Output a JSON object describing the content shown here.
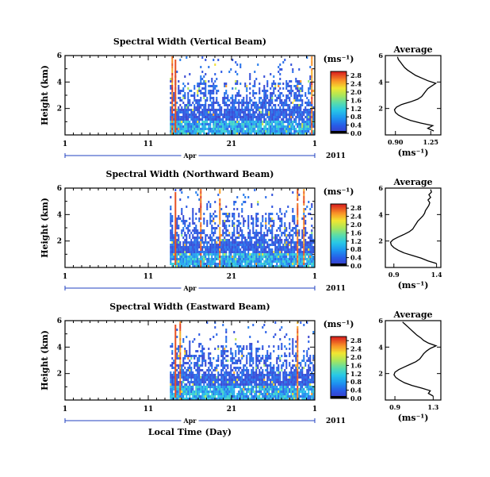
{
  "chart_data": [
    {
      "type": "heatmap",
      "title": "Spectral Width (Vertical Beam)",
      "ylabel": "Height (km)",
      "xlabel": "",
      "x_ticks": [
        "1",
        "11",
        "21",
        "1"
      ],
      "month_label": "Apr",
      "year_label": "2011",
      "y_ticks": [
        "2",
        "4",
        "6"
      ],
      "ylim": [
        0,
        6
      ],
      "colorbar": {
        "unit": "(ms⁻¹)",
        "ticks": [
          "0.0",
          "0.4",
          "0.8",
          "1.2",
          "1.6",
          "2.0",
          "2.4",
          "2.8"
        ],
        "range": [
          0.0,
          3.0
        ]
      },
      "data_start_fraction": 0.42,
      "profile": {
        "title": "Average",
        "xlabel": "(ms⁻¹)",
        "x_ticks": [
          "0.90",
          "1.25"
        ],
        "xlim": [
          0.8,
          1.35
        ],
        "y_ticks": [
          "2",
          "4",
          "6"
        ],
        "heights": [
          0.3,
          0.5,
          0.7,
          0.9,
          1.1,
          1.3,
          1.5,
          1.7,
          1.9,
          2.1,
          2.3,
          2.5,
          2.7,
          2.9,
          3.1,
          3.3,
          3.5,
          3.7,
          3.9,
          4.1,
          4.3,
          4.5,
          4.7,
          4.9,
          5.1,
          5.3,
          5.5,
          5.7,
          5.9
        ],
        "values": [
          1.28,
          1.22,
          1.27,
          1.15,
          1.05,
          0.98,
          0.93,
          0.9,
          0.89,
          0.91,
          0.96,
          1.05,
          1.12,
          1.16,
          1.18,
          1.2,
          1.22,
          1.26,
          1.3,
          1.22,
          1.16,
          1.1,
          1.06,
          1.02,
          0.99,
          0.97,
          0.95,
          0.93,
          0.92
        ]
      }
    },
    {
      "type": "heatmap",
      "title": "Spectral Width (Northward Beam)",
      "ylabel": "Height (km)",
      "xlabel": "",
      "x_ticks": [
        "1",
        "11",
        "21",
        "1"
      ],
      "month_label": "Apr",
      "year_label": "2011",
      "y_ticks": [
        "2",
        "4",
        "6"
      ],
      "ylim": [
        0,
        6
      ],
      "colorbar": {
        "unit": "(ms⁻¹)",
        "ticks": [
          "0.0",
          "0.4",
          "0.8",
          "1.2",
          "1.6",
          "2.0",
          "2.4",
          "2.8"
        ],
        "range": [
          0.0,
          3.0
        ]
      },
      "data_start_fraction": 0.42,
      "profile": {
        "title": "Average",
        "xlabel": "(ms⁻¹)",
        "x_ticks": [
          "0.9",
          "1.4"
        ],
        "xlim": [
          0.8,
          1.45
        ],
        "y_ticks": [
          "2",
          "4",
          "6"
        ],
        "heights": [
          0.3,
          0.5,
          0.7,
          0.9,
          1.1,
          1.3,
          1.5,
          1.7,
          1.9,
          2.1,
          2.3,
          2.5,
          2.7,
          2.9,
          3.1,
          3.3,
          3.5,
          3.7,
          3.9,
          4.1,
          4.3,
          4.5,
          4.7,
          4.9,
          5.1,
          5.3,
          5.5,
          5.7,
          5.9
        ],
        "values": [
          1.4,
          1.3,
          1.22,
          1.12,
          1.02,
          0.95,
          0.9,
          0.87,
          0.86,
          0.89,
          0.95,
          1.02,
          1.08,
          1.12,
          1.14,
          1.16,
          1.18,
          1.21,
          1.24,
          1.26,
          1.27,
          1.29,
          1.31,
          1.32,
          1.3,
          1.33,
          1.31,
          1.34,
          1.33
        ]
      }
    },
    {
      "type": "heatmap",
      "title": "Spectral Width (Eastward Beam)",
      "ylabel": "Height (km)",
      "xlabel": "Local Time (Day)",
      "x_ticks": [
        "1",
        "11",
        "21",
        "1"
      ],
      "month_label": "Apr",
      "year_label": "2011",
      "y_ticks": [
        "2",
        "4",
        "6"
      ],
      "ylim": [
        0,
        6
      ],
      "colorbar": {
        "unit": "(ms⁻¹)",
        "ticks": [
          "0.0",
          "0.4",
          "0.8",
          "1.2",
          "1.6",
          "2.0",
          "2.4",
          "2.8"
        ],
        "range": [
          0.0,
          3.0
        ]
      },
      "data_start_fraction": 0.42,
      "profile": {
        "title": "Average",
        "xlabel": "(ms⁻¹)",
        "x_ticks": [
          "0.9",
          "1.3"
        ],
        "xlim": [
          0.8,
          1.38
        ],
        "y_ticks": [
          "2",
          "4",
          "6"
        ],
        "heights": [
          0.3,
          0.5,
          0.7,
          0.9,
          1.1,
          1.3,
          1.5,
          1.7,
          1.9,
          2.1,
          2.3,
          2.5,
          2.7,
          2.9,
          3.1,
          3.3,
          3.5,
          3.7,
          3.9,
          4.1,
          4.3,
          4.5,
          4.7,
          4.9,
          5.1,
          5.3,
          5.5,
          5.7,
          5.9
        ],
        "values": [
          1.3,
          1.25,
          1.27,
          1.18,
          1.08,
          1.0,
          0.95,
          0.91,
          0.89,
          0.9,
          0.94,
          1.0,
          1.06,
          1.12,
          1.16,
          1.18,
          1.2,
          1.23,
          1.27,
          1.33,
          1.25,
          1.2,
          1.17,
          1.13,
          1.1,
          1.07,
          1.04,
          1.01,
          0.98
        ]
      }
    }
  ]
}
